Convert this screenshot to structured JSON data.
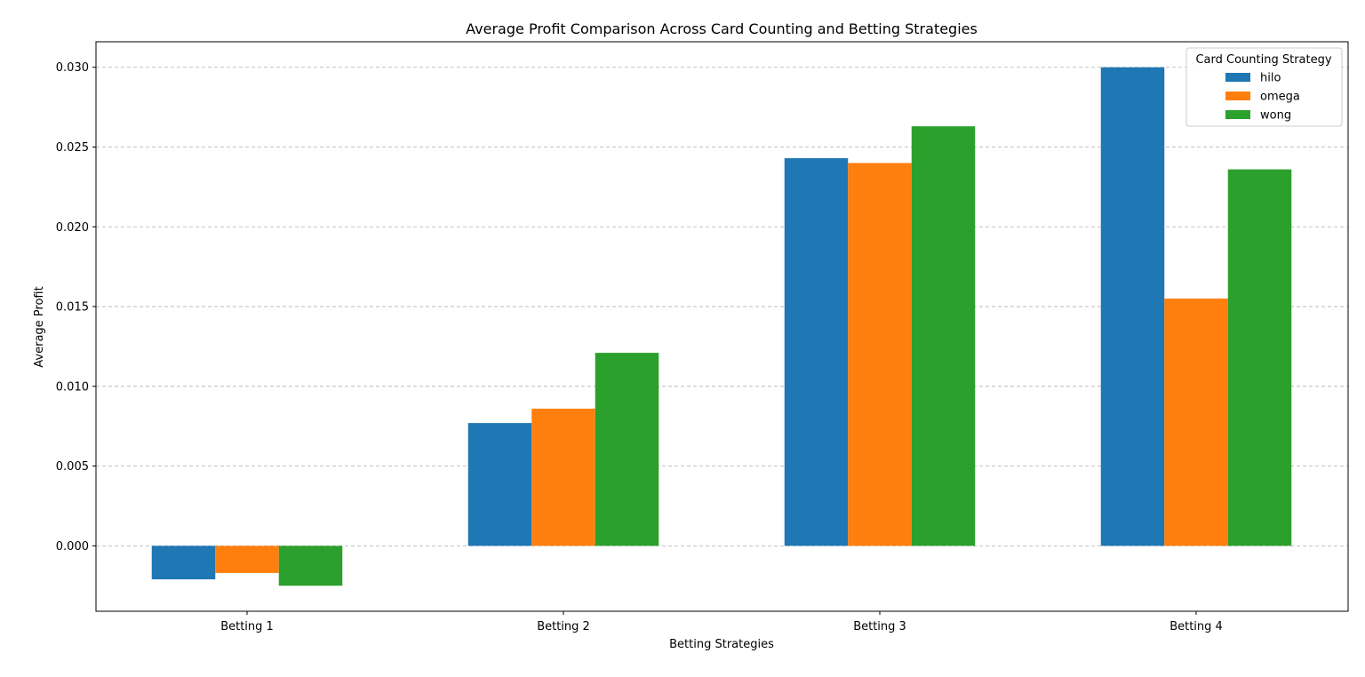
{
  "chart_data": {
    "type": "bar",
    "title": "Average Profit Comparison Across Card Counting and Betting Strategies",
    "xlabel": "Betting Strategies",
    "ylabel": "Average Profit",
    "categories": [
      "Betting 1",
      "Betting 2",
      "Betting 3",
      "Betting 4"
    ],
    "series": [
      {
        "name": "hilo",
        "color": "#1f77b4",
        "values": [
          -0.0021,
          0.0077,
          0.0243,
          0.03
        ]
      },
      {
        "name": "omega",
        "color": "#ff7f0e",
        "values": [
          -0.0017,
          0.0086,
          0.024,
          0.0155
        ]
      },
      {
        "name": "wong",
        "color": "#2ca02c",
        "values": [
          -0.0025,
          0.0121,
          0.0263,
          0.0236
        ]
      }
    ],
    "ylim": [
      -0.0041,
      0.0316
    ],
    "yticks": [
      0.0,
      0.005,
      0.01,
      0.015,
      0.02,
      0.025,
      0.03
    ],
    "ytick_labels": [
      "0.000",
      "0.005",
      "0.010",
      "0.015",
      "0.020",
      "0.025",
      "0.030"
    ],
    "grid": "y-dashed",
    "legend": {
      "title": "Card Counting Strategy",
      "placement": "top-right"
    }
  }
}
